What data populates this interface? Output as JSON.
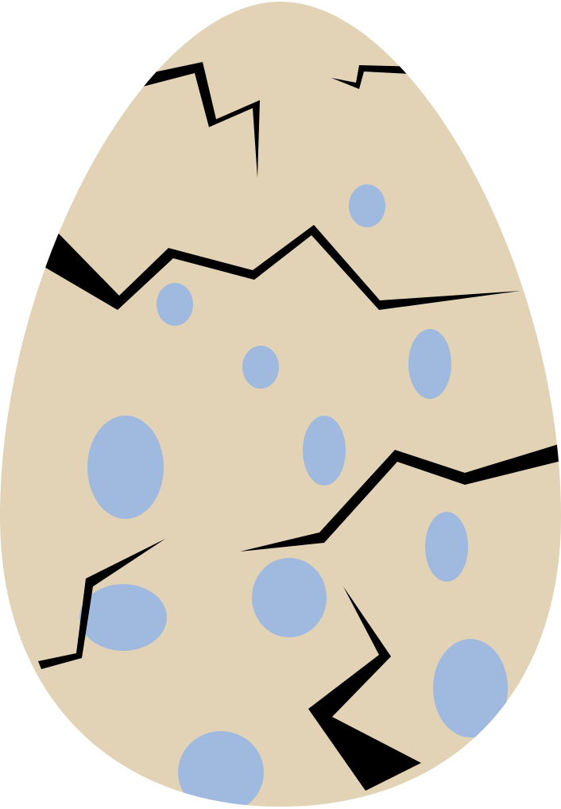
{
  "illustration": {
    "subject": "cracked-speckled-egg",
    "colors": {
      "shell": "#e2d3b7",
      "speckle": "#a0b9de",
      "crack": "#000000",
      "background": "#ffffff"
    }
  }
}
